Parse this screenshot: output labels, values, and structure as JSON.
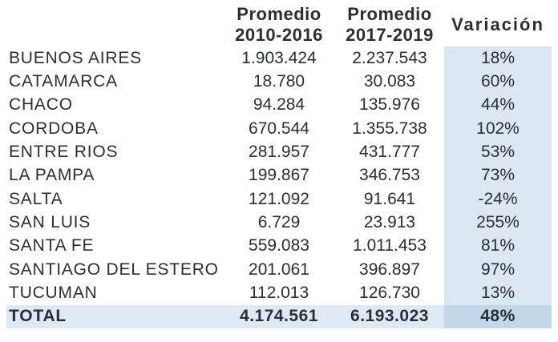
{
  "colors": {
    "text": "#2b2e33",
    "variation_column_bg": "#dbe8f4",
    "total_row_bg": "#dde9f4",
    "total_variation_bg": "#c2d7e9"
  },
  "table": {
    "headers": {
      "col2_line1": "Promedio",
      "col2_line2": "2010-2016",
      "col3_line1": "Promedio",
      "col3_line2": "2017-2019",
      "col4": "Variación"
    },
    "rows": [
      {
        "name": "BUENOS AIRES",
        "avg_2010_2016": "1.903.424",
        "avg_2017_2019": "2.237.543",
        "variation": "18%"
      },
      {
        "name": "CATAMARCA",
        "avg_2010_2016": "18.780",
        "avg_2017_2019": "30.083",
        "variation": "60%"
      },
      {
        "name": "CHACO",
        "avg_2010_2016": "94.284",
        "avg_2017_2019": "135.976",
        "variation": "44%"
      },
      {
        "name": "CORDOBA",
        "avg_2010_2016": "670.544",
        "avg_2017_2019": "1.355.738",
        "variation": "102%"
      },
      {
        "name": "ENTRE RIOS",
        "avg_2010_2016": "281.957",
        "avg_2017_2019": "431.777",
        "variation": "53%"
      },
      {
        "name": "LA PAMPA",
        "avg_2010_2016": "199.867",
        "avg_2017_2019": "346.753",
        "variation": "73%"
      },
      {
        "name": "SALTA",
        "avg_2010_2016": "121.092",
        "avg_2017_2019": "91.641",
        "variation": "-24%"
      },
      {
        "name": "SAN LUIS",
        "avg_2010_2016": "6.729",
        "avg_2017_2019": "23.913",
        "variation": "255%"
      },
      {
        "name": "SANTA FE",
        "avg_2010_2016": "559.083",
        "avg_2017_2019": "1.011.453",
        "variation": "81%"
      },
      {
        "name": "SANTIAGO DEL ESTERO",
        "avg_2010_2016": "201.061",
        "avg_2017_2019": "396.897",
        "variation": "97%"
      },
      {
        "name": "TUCUMAN",
        "avg_2010_2016": "112.013",
        "avg_2017_2019": "126.730",
        "variation": "13%"
      },
      {
        "name": "TOTAL",
        "avg_2010_2016": "4.174.561",
        "avg_2017_2019": "6.193.023",
        "variation": "48%",
        "is_total": true
      }
    ]
  },
  "chart_data": {
    "type": "table",
    "title": "",
    "columns": [
      "",
      "Promedio 2010-2016",
      "Promedio 2017-2019",
      "Variación"
    ],
    "rows": [
      [
        "BUENOS AIRES",
        1903424,
        2237543,
        18
      ],
      [
        "CATAMARCA",
        18780,
        30083,
        60
      ],
      [
        "CHACO",
        94284,
        135976,
        44
      ],
      [
        "CORDOBA",
        670544,
        1355738,
        102
      ],
      [
        "ENTRE RIOS",
        281957,
        431777,
        53
      ],
      [
        "LA PAMPA",
        199867,
        346753,
        73
      ],
      [
        "SALTA",
        121092,
        91641,
        -24
      ],
      [
        "SAN LUIS",
        6729,
        23913,
        255
      ],
      [
        "SANTA FE",
        559083,
        1011453,
        81
      ],
      [
        "SANTIAGO DEL ESTERO",
        201061,
        396897,
        97
      ],
      [
        "TUCUMAN",
        112013,
        126730,
        13
      ],
      [
        "TOTAL",
        4174561,
        6193023,
        48
      ]
    ],
    "notes": "Variación column values are percentages; numbers use dot thousands separators; Variación column shaded light blue; TOTAL row bold and shaded"
  }
}
